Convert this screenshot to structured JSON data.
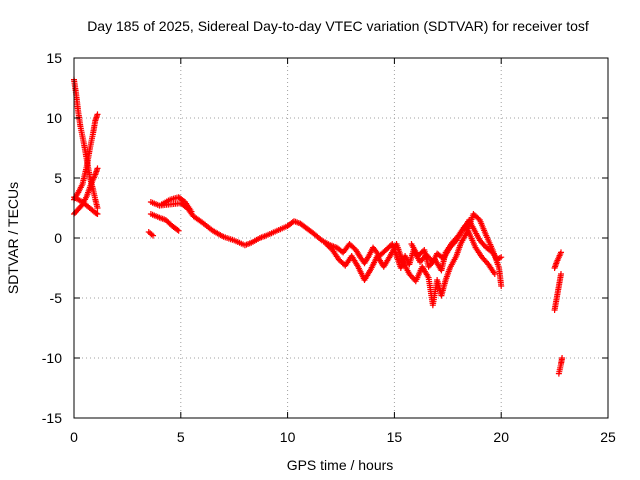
{
  "chart_data": {
    "type": "scatter",
    "title": "Day 185 of 2025, Sidereal Day-to-day VTEC variation (SDTVAR) for receiver tosf",
    "xlabel": "GPS time / hours",
    "ylabel": "SDTVAR / TECUs",
    "xlim": [
      0,
      25
    ],
    "ylim": [
      -15,
      15
    ],
    "xticks": [
      0,
      5,
      10,
      15,
      20,
      25
    ],
    "yticks": [
      -15,
      -10,
      -5,
      0,
      5,
      10,
      15
    ],
    "xtick_labels": [
      "0",
      "5",
      "10",
      "15",
      "20",
      "25"
    ],
    "ytick_labels": [
      "-15",
      "-10",
      "-5",
      "0",
      "5",
      "10",
      "15"
    ],
    "grid": true,
    "marker": "+",
    "color": "#ff0000",
    "series": [
      {
        "name": "track-1",
        "points": [
          [
            0.0,
            13.2
          ],
          [
            0.1,
            12.0
          ],
          [
            0.2,
            10.5
          ],
          [
            0.3,
            9.3
          ],
          [
            0.45,
            8.0
          ],
          [
            0.6,
            6.5
          ],
          [
            0.75,
            5.0
          ],
          [
            0.9,
            4.0
          ],
          [
            1.0,
            3.2
          ],
          [
            1.1,
            2.5
          ]
        ]
      },
      {
        "name": "track-2",
        "points": [
          [
            0.0,
            3.2
          ],
          [
            0.2,
            3.8
          ],
          [
            0.4,
            4.5
          ],
          [
            0.6,
            6.0
          ],
          [
            0.75,
            7.5
          ],
          [
            0.9,
            8.8
          ],
          [
            1.0,
            9.8
          ],
          [
            1.1,
            10.3
          ]
        ]
      },
      {
        "name": "track-3",
        "points": [
          [
            0.0,
            2.0
          ],
          [
            0.2,
            2.4
          ],
          [
            0.4,
            2.8
          ],
          [
            0.6,
            3.5
          ],
          [
            0.8,
            4.5
          ],
          [
            1.0,
            5.3
          ],
          [
            1.1,
            5.8
          ]
        ]
      },
      {
        "name": "track-4",
        "points": [
          [
            0.0,
            3.4
          ],
          [
            0.2,
            3.2
          ],
          [
            0.4,
            3.0
          ],
          [
            0.6,
            2.7
          ],
          [
            0.8,
            2.4
          ],
          [
            1.0,
            2.1
          ],
          [
            1.1,
            2.0
          ]
        ]
      },
      {
        "name": "track-5",
        "points": [
          [
            3.5,
            0.5
          ],
          [
            3.7,
            0.2
          ]
        ]
      },
      {
        "name": "track-6",
        "points": [
          [
            3.6,
            3.0
          ],
          [
            4.0,
            2.7
          ],
          [
            4.5,
            2.8
          ],
          [
            5.0,
            2.9
          ],
          [
            5.3,
            2.5
          ],
          [
            5.6,
            1.8
          ],
          [
            6.0,
            1.3
          ],
          [
            6.5,
            0.6
          ],
          [
            7.0,
            0.1
          ],
          [
            7.5,
            -0.2
          ],
          [
            8.0,
            -0.6
          ],
          [
            8.3,
            -0.4
          ],
          [
            8.7,
            0.0
          ],
          [
            9.0,
            0.2
          ],
          [
            9.5,
            0.6
          ],
          [
            10.0,
            1.0
          ],
          [
            10.3,
            1.4
          ],
          [
            10.6,
            1.2
          ],
          [
            10.9,
            0.8
          ],
          [
            11.2,
            0.4
          ],
          [
            11.6,
            -0.2
          ],
          [
            12.0,
            -0.6
          ],
          [
            12.3,
            -0.8
          ],
          [
            12.6,
            -1.2
          ],
          [
            12.9,
            -0.5
          ],
          [
            13.2,
            -1.0
          ],
          [
            13.4,
            -1.6
          ],
          [
            13.6,
            -2.1
          ],
          [
            13.8,
            -1.5
          ],
          [
            14.0,
            -0.8
          ],
          [
            14.3,
            -1.5
          ],
          [
            14.6,
            -1.0
          ],
          [
            14.9,
            -0.5
          ],
          [
            15.1,
            -1.5
          ],
          [
            15.3,
            -2.5
          ],
          [
            15.5,
            -1.5
          ],
          [
            15.7,
            -2.2
          ],
          [
            15.9,
            -1.0
          ],
          [
            16.2,
            -2.0
          ],
          [
            16.5,
            -1.4
          ],
          [
            16.8,
            -2.0
          ],
          [
            17.0,
            -1.3
          ],
          [
            17.3,
            -1.7
          ],
          [
            17.6,
            -0.8
          ],
          [
            17.9,
            -0.2
          ],
          [
            18.2,
            0.7
          ],
          [
            18.5,
            1.5
          ],
          [
            18.7,
            0.8
          ],
          [
            19.0,
            -0.2
          ],
          [
            19.3,
            -0.8
          ],
          [
            19.6,
            -1.2
          ],
          [
            19.8,
            -1.8
          ],
          [
            20.0,
            -1.6
          ]
        ]
      },
      {
        "name": "track-7",
        "points": [
          [
            3.6,
            2.0
          ],
          [
            4.0,
            1.7
          ],
          [
            4.3,
            1.5
          ],
          [
            4.6,
            1.0
          ],
          [
            4.9,
            0.6
          ]
        ]
      },
      {
        "name": "track-8",
        "points": [
          [
            4.1,
            2.8
          ],
          [
            4.5,
            3.2
          ],
          [
            4.9,
            3.4
          ],
          [
            5.2,
            3.0
          ],
          [
            5.5,
            2.2
          ]
        ]
      },
      {
        "name": "track-9",
        "points": [
          [
            11.8,
            -0.5
          ],
          [
            12.1,
            -1.0
          ],
          [
            12.4,
            -1.8
          ],
          [
            12.7,
            -2.3
          ],
          [
            13.0,
            -1.5
          ],
          [
            13.3,
            -2.4
          ],
          [
            13.6,
            -3.5
          ],
          [
            13.9,
            -2.6
          ],
          [
            14.2,
            -1.5
          ],
          [
            14.5,
            -2.4
          ],
          [
            14.8,
            -1.5
          ],
          [
            15.1,
            -0.5
          ],
          [
            15.4,
            -2.0
          ],
          [
            15.7,
            -3.0
          ],
          [
            16.0,
            -3.6
          ],
          [
            16.3,
            -2.4
          ],
          [
            16.6,
            -3.3
          ],
          [
            16.8,
            -5.6
          ],
          [
            17.0,
            -3.5
          ],
          [
            17.2,
            -4.8
          ],
          [
            17.4,
            -3.5
          ],
          [
            17.6,
            -2.5
          ],
          [
            17.9,
            -1.5
          ],
          [
            18.1,
            -0.5
          ],
          [
            18.4,
            0.5
          ],
          [
            18.7,
            2.0
          ],
          [
            19.0,
            1.5
          ],
          [
            19.3,
            0.2
          ],
          [
            19.6,
            -1.0
          ],
          [
            19.9,
            -2.5
          ],
          [
            20.0,
            -4.0
          ]
        ]
      },
      {
        "name": "track-10",
        "points": [
          [
            15.8,
            -0.5
          ],
          [
            16.1,
            -1.5
          ],
          [
            16.4,
            -1.0
          ],
          [
            16.6,
            -2.4
          ],
          [
            16.9,
            -1.8
          ],
          [
            17.2,
            -2.7
          ],
          [
            17.4,
            -1.2
          ],
          [
            17.7,
            -0.4
          ],
          [
            18.0,
            0.2
          ],
          [
            18.3,
            1.0
          ],
          [
            18.5,
            0.4
          ],
          [
            18.8,
            -0.8
          ],
          [
            19.1,
            -1.6
          ],
          [
            19.4,
            -2.2
          ],
          [
            19.7,
            -3.0
          ]
        ]
      },
      {
        "name": "track-11",
        "points": [
          [
            22.5,
            -6.0
          ],
          [
            22.6,
            -5.0
          ],
          [
            22.7,
            -4.0
          ],
          [
            22.8,
            -3.0
          ]
        ]
      },
      {
        "name": "track-12",
        "points": [
          [
            22.5,
            -2.5
          ],
          [
            22.6,
            -2.0
          ],
          [
            22.7,
            -1.6
          ],
          [
            22.8,
            -1.2
          ]
        ]
      },
      {
        "name": "track-13",
        "points": [
          [
            22.7,
            -11.3
          ],
          [
            22.8,
            -10.5
          ],
          [
            22.85,
            -10.0
          ]
        ]
      }
    ]
  }
}
